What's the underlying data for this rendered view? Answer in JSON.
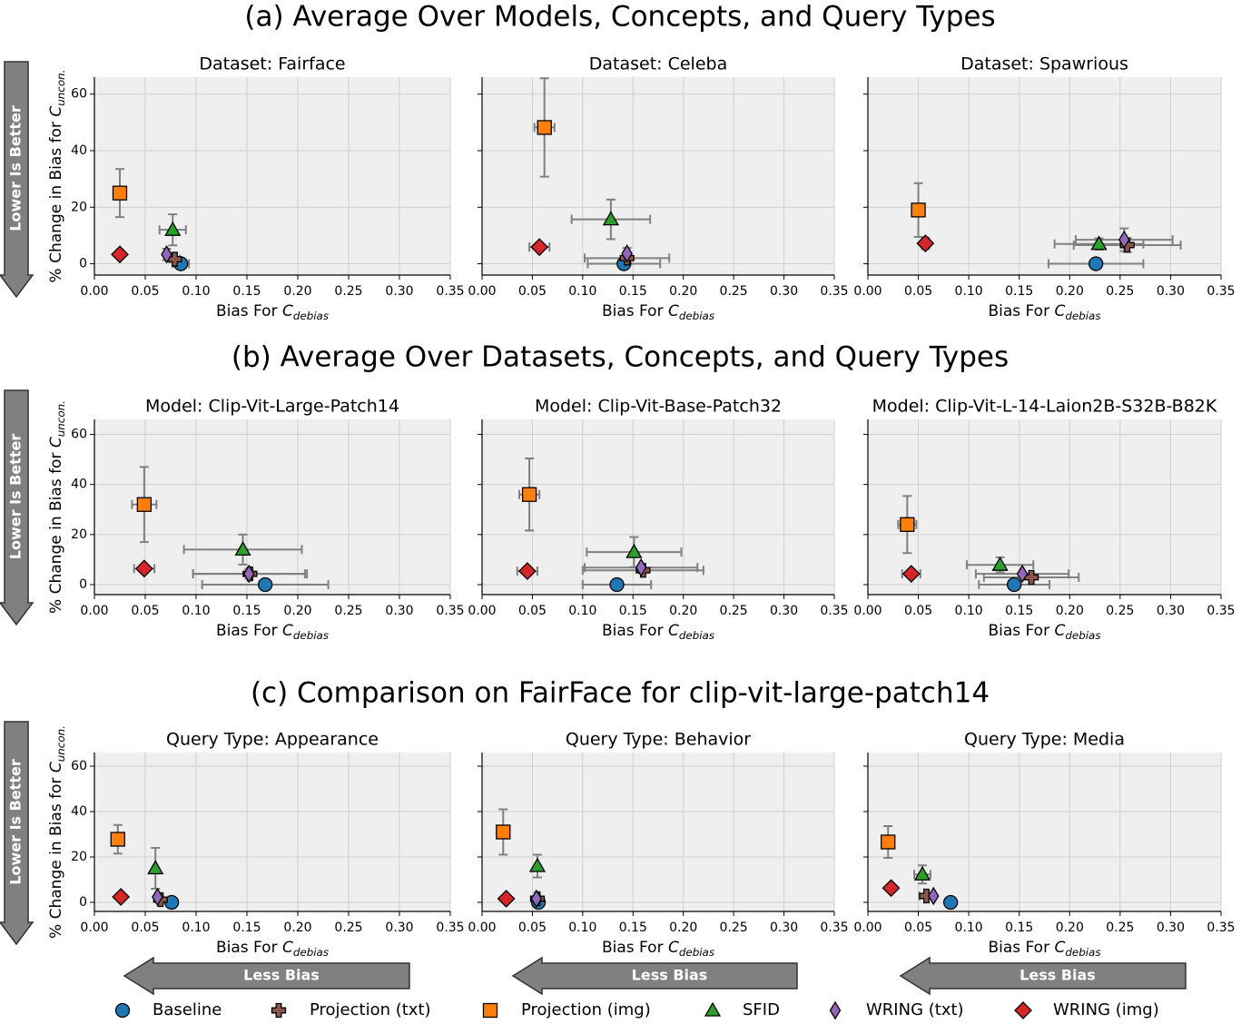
{
  "row_titles": [
    "(a) Average Over Models, Concepts, and Query Types",
    "(b) Average Over Datasets, Concepts, and Query Types",
    "(c) Comparison on FairFace for clip-vit-large-patch14"
  ],
  "side_labels": [
    "Lower Is Better",
    "Lower Is Better",
    "Lower Is Better"
  ],
  "arrow_labels": [
    "Less Bias",
    "Less Bias",
    "Less Bias"
  ],
  "legend": [
    {
      "name": "Baseline",
      "color": "#1f77b4",
      "marker": "circle"
    },
    {
      "name": "Projection (txt)",
      "color": "#8c564b",
      "marker": "plus"
    },
    {
      "name": "Projection (img)",
      "color": "#ff7f0e",
      "marker": "square"
    },
    {
      "name": "SFID",
      "color": "#2ca02c",
      "marker": "triangle"
    },
    {
      "name": "WRING (txt)",
      "color": "#9467bd",
      "marker": "thin_diamond"
    },
    {
      "name": "WRING (img)",
      "color": "#d62728",
      "marker": "diamond"
    }
  ],
  "chart_data": [
    {
      "type": "scatter",
      "title": "Dataset: Fairface",
      "x": [
        0.085,
        0.079,
        0.025,
        0.077,
        0.071,
        0.025
      ],
      "values": [
        0,
        1.6,
        25,
        12,
        3.3,
        3.3
      ],
      "xerr": [
        0.008,
        0.005,
        null,
        0.013,
        null,
        null
      ],
      "yerr": [
        null,
        null,
        8.5,
        5.5,
        2,
        null
      ],
      "xlim": [
        0,
        0.35
      ],
      "ylim": [
        -4,
        66
      ],
      "xticks": [
        {
          "value": 0,
          "label": "0.00"
        },
        {
          "value": 0.05,
          "label": "0.05"
        },
        {
          "value": 0.1,
          "label": "0.10"
        },
        {
          "value": 0.15,
          "label": "0.15"
        },
        {
          "value": 0.2,
          "label": "0.20"
        },
        {
          "value": 0.25,
          "label": "0.25"
        },
        {
          "value": 0.3,
          "label": "0.30"
        },
        {
          "value": 0.35,
          "label": "0.35"
        }
      ],
      "yticks": [
        0,
        20,
        40,
        60
      ],
      "grid": true,
      "xlabel": {
        "text": "Bias For ",
        "symbol": "C",
        "subscript": "debias"
      },
      "ylabel": {
        "text": "% Change in Bias for ",
        "symbol": "C",
        "subscript": "uncon."
      }
    },
    {
      "type": "scatter",
      "title": "Dataset: Celeba",
      "x": [
        0.141,
        0.144,
        0.062,
        0.128,
        0.144,
        0.057
      ],
      "values": [
        0,
        2,
        48.2,
        15.7,
        3.6,
        5.9
      ],
      "xerr": [
        0.036,
        0.042,
        0.01,
        0.039,
        null,
        0.01
      ],
      "yerr": [
        null,
        null,
        17.4,
        7,
        2,
        null
      ],
      "xlim": [
        0,
        0.35
      ],
      "ylim": [
        -4,
        66
      ],
      "xticks": [
        {
          "value": 0,
          "label": "0.00"
        },
        {
          "value": 0.05,
          "label": "0.05"
        },
        {
          "value": 0.1,
          "label": "0.10"
        },
        {
          "value": 0.15,
          "label": "0.15"
        },
        {
          "value": 0.2,
          "label": "0.20"
        },
        {
          "value": 0.25,
          "label": "0.25"
        },
        {
          "value": 0.3,
          "label": "0.30"
        },
        {
          "value": 0.35,
          "label": "0.35"
        }
      ],
      "yticks": [
        0,
        20,
        40,
        60
      ],
      "grid": true,
      "xlabel": {
        "text": "Bias For ",
        "symbol": "C",
        "subscript": "debias"
      }
    },
    {
      "type": "scatter",
      "title": "Dataset: Spawrious",
      "x": [
        0.226,
        0.257,
        0.05,
        0.229,
        0.254,
        0.057
      ],
      "values": [
        0,
        6.6,
        19,
        7,
        8.5,
        7.2
      ],
      "xerr": [
        0.047,
        0.053,
        null,
        0.044,
        0.048,
        null
      ],
      "yerr": [
        null,
        2.5,
        9.5,
        2,
        4,
        2
      ],
      "xlim": [
        0,
        0.35
      ],
      "ylim": [
        -4,
        66
      ],
      "xticks": [
        {
          "value": 0,
          "label": "0.00"
        },
        {
          "value": 0.05,
          "label": "0.05"
        },
        {
          "value": 0.1,
          "label": "0.10"
        },
        {
          "value": 0.15,
          "label": "0.15"
        },
        {
          "value": 0.2,
          "label": "0.20"
        },
        {
          "value": 0.25,
          "label": "0.25"
        },
        {
          "value": 0.3,
          "label": "0.30"
        },
        {
          "value": 0.35,
          "label": "0.35"
        }
      ],
      "yticks": [
        0,
        20,
        40,
        60
      ],
      "grid": true,
      "xlabel": {
        "text": "Bias For ",
        "symbol": "C",
        "subscript": "debias"
      }
    },
    {
      "type": "scatter",
      "title": "Model: Clip-Vit-Large-Patch14",
      "x": [
        0.168,
        0.153,
        0.049,
        0.146,
        0.152,
        0.049
      ],
      "values": [
        0,
        4.3,
        32,
        14,
        4.3,
        6.4
      ],
      "xerr": [
        0.062,
        0.056,
        0.012,
        0.058,
        0.055,
        0.01
      ],
      "yerr": [
        null,
        null,
        15,
        6,
        2,
        null
      ],
      "xlim": [
        0,
        0.35
      ],
      "ylim": [
        -4,
        66
      ],
      "xticks": [
        {
          "value": 0,
          "label": "0.00"
        },
        {
          "value": 0.05,
          "label": "0.05"
        },
        {
          "value": 0.1,
          "label": "0.10"
        },
        {
          "value": 0.15,
          "label": "0.15"
        },
        {
          "value": 0.2,
          "label": "0.20"
        },
        {
          "value": 0.25,
          "label": "0.25"
        },
        {
          "value": 0.3,
          "label": "0.30"
        },
        {
          "value": 0.35,
          "label": "0.35"
        }
      ],
      "yticks": [
        0,
        20,
        40,
        60
      ],
      "grid": true,
      "xlabel": {
        "text": "Bias For ",
        "symbol": "C",
        "subscript": "debias"
      },
      "ylabel": {
        "text": "% Change in Bias for ",
        "symbol": "C",
        "subscript": "uncon."
      }
    },
    {
      "type": "scatter",
      "title": "Model: Clip-Vit-Base-Patch32",
      "x": [
        0.134,
        0.16,
        0.047,
        0.151,
        0.158,
        0.045
      ],
      "values": [
        0,
        5.7,
        36,
        13,
        6.8,
        5.4
      ],
      "xerr": [
        0.034,
        0.06,
        0.01,
        0.047,
        0.056,
        0.01
      ],
      "yerr": [
        null,
        null,
        14.4,
        6,
        null,
        null
      ],
      "xlim": [
        0,
        0.35
      ],
      "ylim": [
        -4,
        66
      ],
      "xticks": [
        {
          "value": 0,
          "label": "0.00"
        },
        {
          "value": 0.05,
          "label": "0.05"
        },
        {
          "value": 0.1,
          "label": "0.10"
        },
        {
          "value": 0.15,
          "label": "0.15"
        },
        {
          "value": 0.2,
          "label": "0.20"
        },
        {
          "value": 0.25,
          "label": "0.25"
        },
        {
          "value": 0.3,
          "label": "0.30"
        },
        {
          "value": 0.35,
          "label": "0.35"
        }
      ],
      "yticks": [
        0,
        20,
        40,
        60
      ],
      "grid": true,
      "xlabel": {
        "text": "Bias For ",
        "symbol": "C",
        "subscript": "debias"
      }
    },
    {
      "type": "scatter",
      "title": "Model: Clip-Vit-L-14-Laion2B-S32B-B82K",
      "x": [
        0.145,
        0.162,
        0.039,
        0.131,
        0.153,
        0.043
      ],
      "values": [
        0,
        2.9,
        24,
        7.9,
        4.3,
        4.3
      ],
      "xerr": [
        0.035,
        0.047,
        0.009,
        0.033,
        0.046,
        0.009
      ],
      "yerr": [
        null,
        null,
        11.4,
        3,
        null,
        null
      ],
      "xlim": [
        0,
        0.35
      ],
      "ylim": [
        -4,
        66
      ],
      "xticks": [
        {
          "value": 0,
          "label": "0.00"
        },
        {
          "value": 0.05,
          "label": "0.05"
        },
        {
          "value": 0.1,
          "label": "0.10"
        },
        {
          "value": 0.15,
          "label": "0.15"
        },
        {
          "value": 0.2,
          "label": "0.20"
        },
        {
          "value": 0.25,
          "label": "0.25"
        },
        {
          "value": 0.3,
          "label": "0.30"
        },
        {
          "value": 0.35,
          "label": "0.35"
        }
      ],
      "yticks": [
        0,
        20,
        40,
        60
      ],
      "grid": true,
      "xlabel": {
        "text": "Bias For ",
        "symbol": "C",
        "subscript": "debias"
      }
    },
    {
      "type": "scatter",
      "title": "Query Type: Appearance",
      "x": [
        0.076,
        0.065,
        0.023,
        0.06,
        0.062,
        0.026
      ],
      "values": [
        0,
        1.2,
        27.8,
        15,
        2.4,
        2.4
      ],
      "xerr": [
        null,
        null,
        0.005,
        null,
        null,
        null
      ],
      "yerr": [
        null,
        null,
        6.3,
        9,
        null,
        null
      ],
      "xlim": [
        0,
        0.35
      ],
      "ylim": [
        -4,
        66
      ],
      "xticks": [
        {
          "value": 0,
          "label": "0.00"
        },
        {
          "value": 0.05,
          "label": "0.05"
        },
        {
          "value": 0.1,
          "label": "0.10"
        },
        {
          "value": 0.15,
          "label": "0.15"
        },
        {
          "value": 0.2,
          "label": "0.20"
        },
        {
          "value": 0.25,
          "label": "0.25"
        },
        {
          "value": 0.3,
          "label": "0.30"
        },
        {
          "value": 0.35,
          "label": "0.35"
        }
      ],
      "yticks": [
        0,
        20,
        40,
        60
      ],
      "grid": true,
      "xlabel": {
        "text": "Bias For ",
        "symbol": "C",
        "subscript": "debias"
      },
      "ylabel": {
        "text": "% Change in Bias for ",
        "symbol": "C",
        "subscript": "uncon."
      }
    },
    {
      "type": "scatter",
      "title": "Query Type: Behavior",
      "x": [
        0.056,
        0.055,
        0.021,
        0.055,
        0.054,
        0.024
      ],
      "values": [
        0,
        1.6,
        31,
        16,
        1.6,
        1.6
      ],
      "xerr": [
        null,
        null,
        null,
        null,
        null,
        null
      ],
      "yerr": [
        null,
        null,
        10,
        5,
        null,
        null
      ],
      "xlim": [
        0,
        0.35
      ],
      "ylim": [
        -4,
        66
      ],
      "xticks": [
        {
          "value": 0,
          "label": "0.00"
        },
        {
          "value": 0.05,
          "label": "0.05"
        },
        {
          "value": 0.1,
          "label": "0.10"
        },
        {
          "value": 0.15,
          "label": "0.15"
        },
        {
          "value": 0.2,
          "label": "0.20"
        },
        {
          "value": 0.25,
          "label": "0.25"
        },
        {
          "value": 0.3,
          "label": "0.30"
        },
        {
          "value": 0.35,
          "label": "0.35"
        }
      ],
      "yticks": [
        0,
        20,
        40,
        60
      ],
      "grid": true,
      "xlabel": {
        "text": "Bias For ",
        "symbol": "C",
        "subscript": "debias"
      }
    },
    {
      "type": "scatter",
      "title": "Query Type: Media",
      "x": [
        0.082,
        0.058,
        0.02,
        0.054,
        0.065,
        0.023
      ],
      "values": [
        0,
        2.8,
        26.6,
        12.3,
        2.8,
        6.3
      ],
      "xerr": [
        null,
        0.007,
        null,
        0.008,
        null,
        null
      ],
      "yerr": [
        null,
        null,
        7,
        4,
        null,
        null
      ],
      "xlim": [
        0,
        0.35
      ],
      "ylim": [
        -4,
        66
      ],
      "xticks": [
        {
          "value": 0,
          "label": "0.00"
        },
        {
          "value": 0.05,
          "label": "0.05"
        },
        {
          "value": 0.1,
          "label": "0.10"
        },
        {
          "value": 0.15,
          "label": "0.15"
        },
        {
          "value": 0.2,
          "label": "0.20"
        },
        {
          "value": 0.25,
          "label": "0.25"
        },
        {
          "value": 0.3,
          "label": "0.30"
        },
        {
          "value": 0.35,
          "label": "0.35"
        }
      ],
      "yticks": [
        0,
        20,
        40,
        60
      ],
      "grid": true,
      "xlabel": {
        "text": "Bias For ",
        "symbol": "C",
        "subscript": "debias"
      }
    }
  ]
}
